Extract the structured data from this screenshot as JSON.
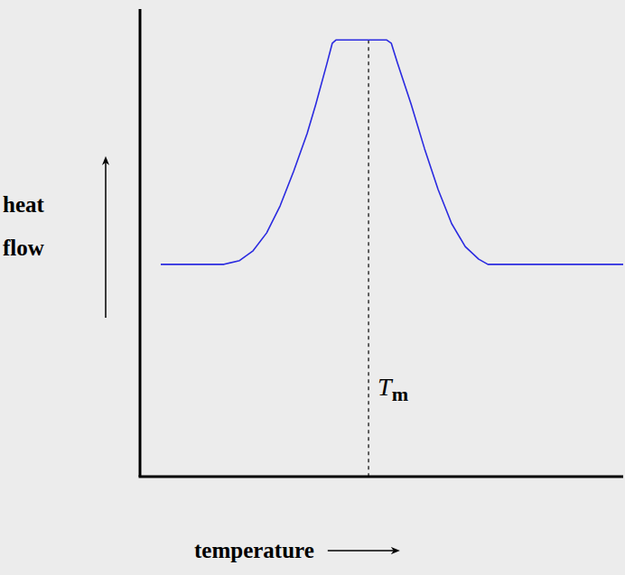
{
  "chart_data": {
    "type": "line",
    "xlabel": "temperature",
    "ylabel": "heat flow",
    "x": [
      4.3,
      17.4,
      20.6,
      23.4,
      26.2,
      29.0,
      31.8,
      34.6,
      36.4,
      38.7,
      39.8,
      40.6,
      51.0,
      52.0,
      53.3,
      56.1,
      58.9,
      61.7,
      64.5,
      67.3,
      70.1,
      72.0,
      100
    ],
    "values": [
      45.4,
      45.4,
      46.2,
      48.3,
      52.1,
      57.9,
      65.3,
      73.4,
      79.7,
      88.4,
      92.7,
      93.4,
      93.4,
      92.7,
      88.4,
      79.7,
      70.1,
      61.4,
      54.1,
      49.2,
      46.5,
      45.4,
      45.4
    ],
    "color": "#2a2ae0",
    "xlim": [
      0,
      100
    ],
    "ylim": [
      0,
      100
    ],
    "tick_labels": false,
    "annotation": {
      "text": "T",
      "subscript": "m",
      "x": 47.3
    }
  }
}
